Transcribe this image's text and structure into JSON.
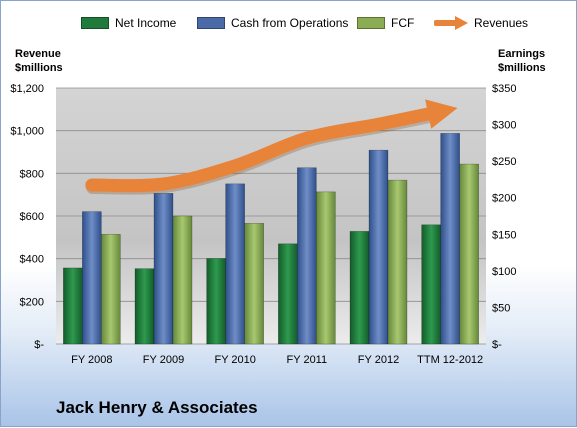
{
  "chart_data": {
    "type": "bar",
    "title": "Jack Henry & Associates",
    "categories": [
      "FY 2008",
      "FY 2009",
      "FY 2010",
      "FY 2011",
      "FY 2012",
      "TTM 12-2012"
    ],
    "left_axis": {
      "label_line1": "Revenue",
      "label_line2": "$millions",
      "ylim": [
        0,
        1200
      ],
      "ticks": [
        0,
        200,
        400,
        600,
        800,
        1000,
        1200
      ],
      "tick_labels": [
        "$-",
        "$200",
        "$400",
        "$600",
        "$800",
        "$1,000",
        "$1,200"
      ]
    },
    "right_axis": {
      "label_line1": "Earnings",
      "label_line2": "$millions",
      "ylim": [
        0,
        350
      ],
      "ticks": [
        0,
        50,
        100,
        150,
        200,
        250,
        300,
        350
      ],
      "tick_labels": [
        "$-",
        "$50",
        "$100",
        "$150",
        "$200",
        "$250",
        "$300",
        "$350"
      ]
    },
    "series": [
      {
        "name": "Net Income",
        "axis": "right",
        "kind": "bar",
        "color": "#1f7a3c",
        "values": [
          104,
          103,
          117,
          137,
          154,
          163
        ]
      },
      {
        "name": "Cash from Operations",
        "axis": "right",
        "kind": "bar",
        "color": "#4a6aa8",
        "values": [
          181,
          206,
          219,
          241,
          265,
          288
        ]
      },
      {
        "name": "FCF",
        "axis": "right",
        "kind": "bar",
        "color": "#8aac52",
        "values": [
          150,
          175,
          165,
          208,
          224,
          246
        ]
      },
      {
        "name": "Revenues",
        "axis": "left",
        "kind": "arrow",
        "color": "#e8843a",
        "values": [
          745,
          750,
          835,
          965,
          1030,
          1078
        ]
      }
    ],
    "legend_position": "top",
    "grid": true
  }
}
